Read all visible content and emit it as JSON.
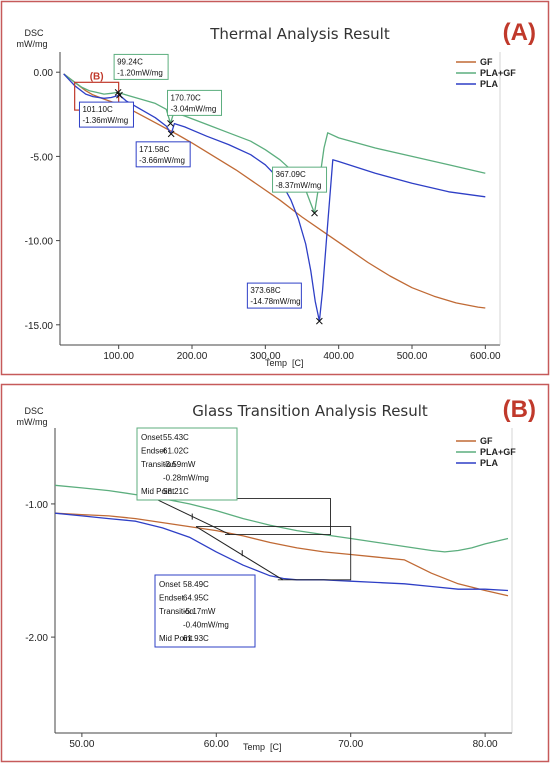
{
  "colors": {
    "GF": "#c06a35",
    "PLA+GF": "#5cae7e",
    "PLA": "#2e3fc6",
    "panel_border": "#c65a5a",
    "panel_letter": "#c0392b",
    "tangent": "#222222"
  },
  "chart_data": [
    {
      "type": "line",
      "panel_label": "(A)",
      "title": "Thermal Analysis Result",
      "ylabel_lines": [
        "DSC",
        "mW/mg"
      ],
      "xlabel": "Temp",
      "xunit": "[C]",
      "xlim": [
        20,
        620
      ],
      "ylim": [
        -16.2,
        1.2
      ],
      "xticks": [
        100,
        200,
        300,
        400,
        500,
        600
      ],
      "xtick_labels": [
        "100.00",
        "200.00",
        "300.00",
        "400.00",
        "500.00",
        "600.00"
      ],
      "yticks": [
        0,
        -5,
        -10,
        -15
      ],
      "ytick_labels": [
        "0.00",
        "-5.00",
        "-10.00",
        "-15.00"
      ],
      "legend_position": "top-right",
      "inset_marker": {
        "label": "(B)",
        "x": [
          40,
          100
        ],
        "y": [
          -0.6,
          -2.25
        ]
      },
      "series": [
        {
          "name": "GF",
          "color_key": "GF",
          "x": [
            25,
            40,
            55,
            65,
            80,
            100,
            120,
            150,
            180,
            200,
            230,
            260,
            290,
            320,
            350,
            380,
            410,
            440,
            470,
            500,
            530,
            560,
            590,
            600
          ],
          "y": [
            -0.1,
            -0.6,
            -1.1,
            -1.35,
            -1.6,
            -1.9,
            -2.3,
            -3.0,
            -3.7,
            -4.2,
            -5.0,
            -5.8,
            -6.7,
            -7.6,
            -8.6,
            -9.5,
            -10.4,
            -11.3,
            -12.1,
            -12.8,
            -13.3,
            -13.7,
            -13.95,
            -14.0
          ]
        },
        {
          "name": "PLA+GF",
          "color_key": "PLA+GF",
          "x": [
            25,
            40,
            50,
            60,
            70,
            80,
            90,
            99,
            110,
            130,
            150,
            165,
            170.7,
            175,
            190,
            220,
            250,
            280,
            300,
            320,
            340,
            355,
            362,
            367.09,
            372,
            380,
            385,
            400,
            450,
            500,
            550,
            600
          ],
          "y": [
            -0.1,
            -0.6,
            -0.9,
            -1.1,
            -1.2,
            -1.3,
            -1.25,
            -1.2,
            -1.35,
            -1.6,
            -1.85,
            -2.2,
            -3.04,
            -2.4,
            -2.6,
            -3.1,
            -3.6,
            -4.1,
            -4.6,
            -5.2,
            -6.0,
            -7.0,
            -7.8,
            -8.37,
            -7.0,
            -4.5,
            -3.6,
            -3.9,
            -4.5,
            -5.0,
            -5.5,
            -6.0
          ]
        },
        {
          "name": "PLA",
          "color_key": "PLA",
          "x": [
            25,
            40,
            55,
            65,
            80,
            90,
            101.1,
            110,
            130,
            150,
            165,
            171.58,
            176,
            190,
            220,
            250,
            280,
            300,
            320,
            335,
            345,
            355,
            362,
            368,
            373.68,
            378,
            385,
            392,
            400,
            450,
            500,
            550,
            600
          ],
          "y": [
            -0.1,
            -0.8,
            -1.3,
            -1.45,
            -1.55,
            -1.5,
            -1.36,
            -1.7,
            -2.2,
            -2.7,
            -3.2,
            -3.66,
            -3.05,
            -3.25,
            -3.8,
            -4.3,
            -4.9,
            -5.5,
            -6.4,
            -7.6,
            -8.7,
            -10.2,
            -11.8,
            -13.6,
            -14.78,
            -13.0,
            -9.0,
            -5.2,
            -5.3,
            -6.0,
            -6.6,
            -7.1,
            -7.4
          ]
        }
      ],
      "annotations": [
        {
          "series": "PLA+GF",
          "temp": "99.24C",
          "value": "-1.20mW/mg",
          "x": 99.24,
          "y": -1.2
        },
        {
          "series": "PLA",
          "temp": "101.10C",
          "value": "-1.36mW/mg",
          "x": 101.1,
          "y": -1.36
        },
        {
          "series": "PLA+GF",
          "temp": "170.70C",
          "value": "-3.04mW/mg",
          "x": 170.7,
          "y": -3.04
        },
        {
          "series": "PLA",
          "temp": "171.58C",
          "value": "-3.66mW/mg",
          "x": 171.58,
          "y": -3.66
        },
        {
          "series": "PLA+GF",
          "temp": "367.09C",
          "value": "-8.37mW/mg",
          "x": 367.09,
          "y": -8.37
        },
        {
          "series": "PLA",
          "temp": "373.68C",
          "value": "-14.78mW/mg",
          "x": 373.68,
          "y": -14.78
        }
      ]
    },
    {
      "type": "line",
      "panel_label": "(B)",
      "title": "Glass Transition Analysis Result",
      "ylabel_lines": [
        "DSC",
        "mW/mg"
      ],
      "xlabel": "Temp",
      "xunit": "[C]",
      "xlim": [
        48,
        82
      ],
      "ylim": [
        -2.72,
        -0.43
      ],
      "xticks": [
        50,
        60,
        70,
        80
      ],
      "xtick_labels": [
        "50.00",
        "60.00",
        "70.00",
        "80.00"
      ],
      "yticks": [
        -1,
        -2
      ],
      "ytick_labels": [
        "-1.00",
        "-2.00"
      ],
      "legend_position": "top-right",
      "series": [
        {
          "name": "GF",
          "color_key": "GF",
          "x": [
            48,
            50,
            52,
            54,
            56,
            58,
            60,
            62,
            64,
            66,
            68,
            70,
            72,
            74,
            76,
            78,
            80,
            81.7
          ],
          "y": [
            -1.07,
            -1.08,
            -1.09,
            -1.11,
            -1.14,
            -1.17,
            -1.2,
            -1.24,
            -1.29,
            -1.33,
            -1.36,
            -1.38,
            -1.4,
            -1.42,
            -1.52,
            -1.6,
            -1.65,
            -1.69
          ]
        },
        {
          "name": "PLA+GF",
          "color_key": "PLA+GF",
          "x": [
            48,
            50,
            52,
            54,
            56,
            58,
            60,
            62,
            64,
            66,
            68,
            70,
            72,
            74,
            76,
            77,
            78,
            79,
            80,
            81.7
          ],
          "y": [
            -0.86,
            -0.88,
            -0.9,
            -0.93,
            -0.96,
            -1.0,
            -1.05,
            -1.11,
            -1.16,
            -1.2,
            -1.23,
            -1.26,
            -1.29,
            -1.32,
            -1.35,
            -1.36,
            -1.35,
            -1.33,
            -1.3,
            -1.26
          ]
        },
        {
          "name": "PLA",
          "color_key": "PLA",
          "x": [
            48,
            50,
            52,
            54,
            56,
            58,
            60,
            62,
            64,
            65,
            66,
            68,
            70,
            72,
            74,
            76,
            78,
            80,
            81.7
          ],
          "y": [
            -1.07,
            -1.09,
            -1.11,
            -1.13,
            -1.18,
            -1.25,
            -1.36,
            -1.46,
            -1.54,
            -1.56,
            -1.57,
            -1.57,
            -1.58,
            -1.59,
            -1.6,
            -1.62,
            -1.64,
            -1.64,
            -1.65
          ]
        }
      ],
      "glass_transition": [
        {
          "series": "PLA+GF",
          "rows": [
            {
              "label": "Onset",
              "value": "55.43C"
            },
            {
              "label": "Endset",
              "value": "61.02C"
            },
            {
              "label": "Transition",
              "value": "-3.59mW"
            },
            {
              "label": "",
              "value": "-0.28mW/mg"
            },
            {
              "label": "Mid Point",
              "value": "58.21C"
            }
          ],
          "onset": 55.43,
          "endset": 61.02,
          "midpoint": 58.21,
          "step_temp_end": 68.5,
          "upper_level": -0.96,
          "lower_level": -1.23
        },
        {
          "series": "PLA",
          "rows": [
            {
              "label": "Onset",
              "value": "58.49C"
            },
            {
              "label": "Endset",
              "value": "64.95C"
            },
            {
              "label": "Transition",
              "value": "-5.17mW"
            },
            {
              "label": "",
              "value": "-0.40mW/mg"
            },
            {
              "label": "Mid Point",
              "value": "61.93C"
            }
          ],
          "onset": 58.49,
          "endset": 64.95,
          "midpoint": 61.93,
          "step_temp_end": 70.0,
          "upper_level": -1.17,
          "lower_level": -1.57
        }
      ]
    }
  ]
}
